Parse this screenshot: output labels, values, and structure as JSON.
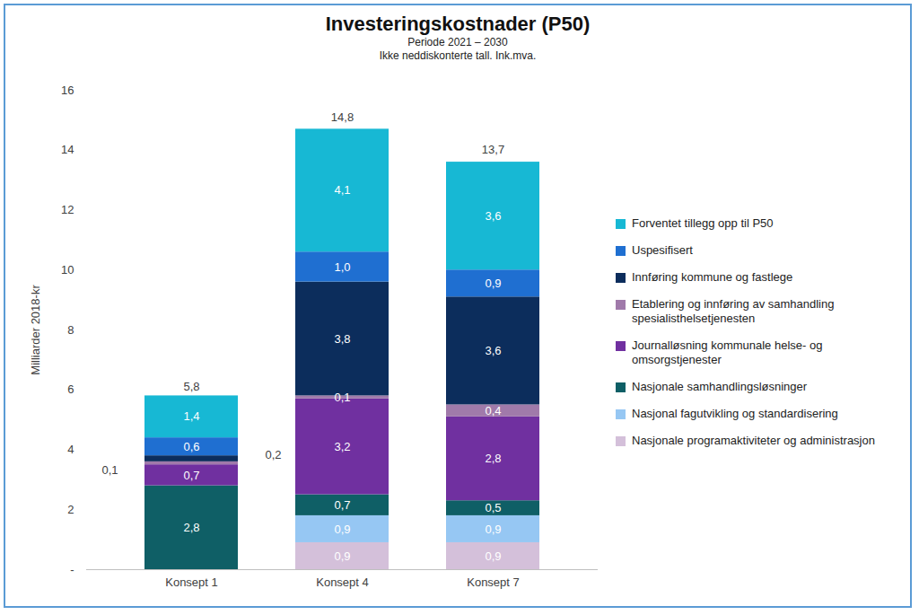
{
  "chart_data": {
    "type": "bar",
    "title": "Investeringskostnader (P50)",
    "subtitle": [
      "Periode 2021 – 2030",
      "Ikke neddiskonterte tall. Ink.mva."
    ],
    "y_label": "Milliarder 2018-kr",
    "categories": [
      "Konsept 1",
      "Konsept 4",
      "Konsept 7"
    ],
    "stacked": true,
    "data_labels": true,
    "legend": "right",
    "grid": false,
    "ylim": [
      0,
      16
    ],
    "yticks": [
      {
        "value": 0,
        "label": "-"
      },
      2,
      4,
      6,
      8,
      10,
      12,
      14,
      16
    ],
    "totals": [
      5.8,
      14.8,
      13.7
    ],
    "total_labels": [
      "5,8",
      "14,8",
      "13,7"
    ],
    "series": [
      {
        "name": "Nasjonale programaktiviteter og administrasjon",
        "color": "#d4c0da",
        "values": [
          null,
          0.9,
          0.9
        ],
        "value_labels": [
          null,
          "0,9",
          "0,9"
        ]
      },
      {
        "name": "Nasjonal fagutvikling og standardisering",
        "color": "#96c7f3",
        "values": [
          null,
          0.9,
          0.9
        ],
        "value_labels": [
          null,
          "0,9",
          "0,9"
        ]
      },
      {
        "name": "Nasjonale samhandlingsløsninger",
        "color": "#0f5f66",
        "values": [
          2.8,
          0.7,
          0.5
        ],
        "value_labels": [
          "2,8",
          "0,7",
          "0,5"
        ]
      },
      {
        "name": "Journalløsning kommunale helse- og omsorgstjenester",
        "color": "#7030a0",
        "values": [
          0.7,
          3.2,
          2.8
        ],
        "value_labels": [
          "0,7",
          "3,2",
          "2,8"
        ]
      },
      {
        "name": "Etablering og innføring av samhandling spesialisthelsetjenesten",
        "color": "#a07aaa",
        "values": [
          0.1,
          0.1,
          0.4
        ],
        "value_labels": [
          "0,1",
          "0,1",
          "0,4"
        ]
      },
      {
        "name": "Innføring kommune og fastlege",
        "color": "#0c2d5c",
        "values": [
          0.2,
          3.8,
          3.6
        ],
        "value_labels": [
          "0,2",
          "3,8",
          "3,6"
        ]
      },
      {
        "name": "Uspesifisert",
        "color": "#1f6fd1",
        "values": [
          0.6,
          1.0,
          0.9
        ],
        "value_labels": [
          "0,6",
          "1,0",
          "0,9"
        ]
      },
      {
        "name": "Forventet tillegg opp til P50",
        "color": "#17b8d4",
        "values": [
          1.4,
          4.1,
          3.6
        ],
        "value_labels": [
          "1,4",
          "4,1",
          "3,6"
        ]
      }
    ]
  }
}
